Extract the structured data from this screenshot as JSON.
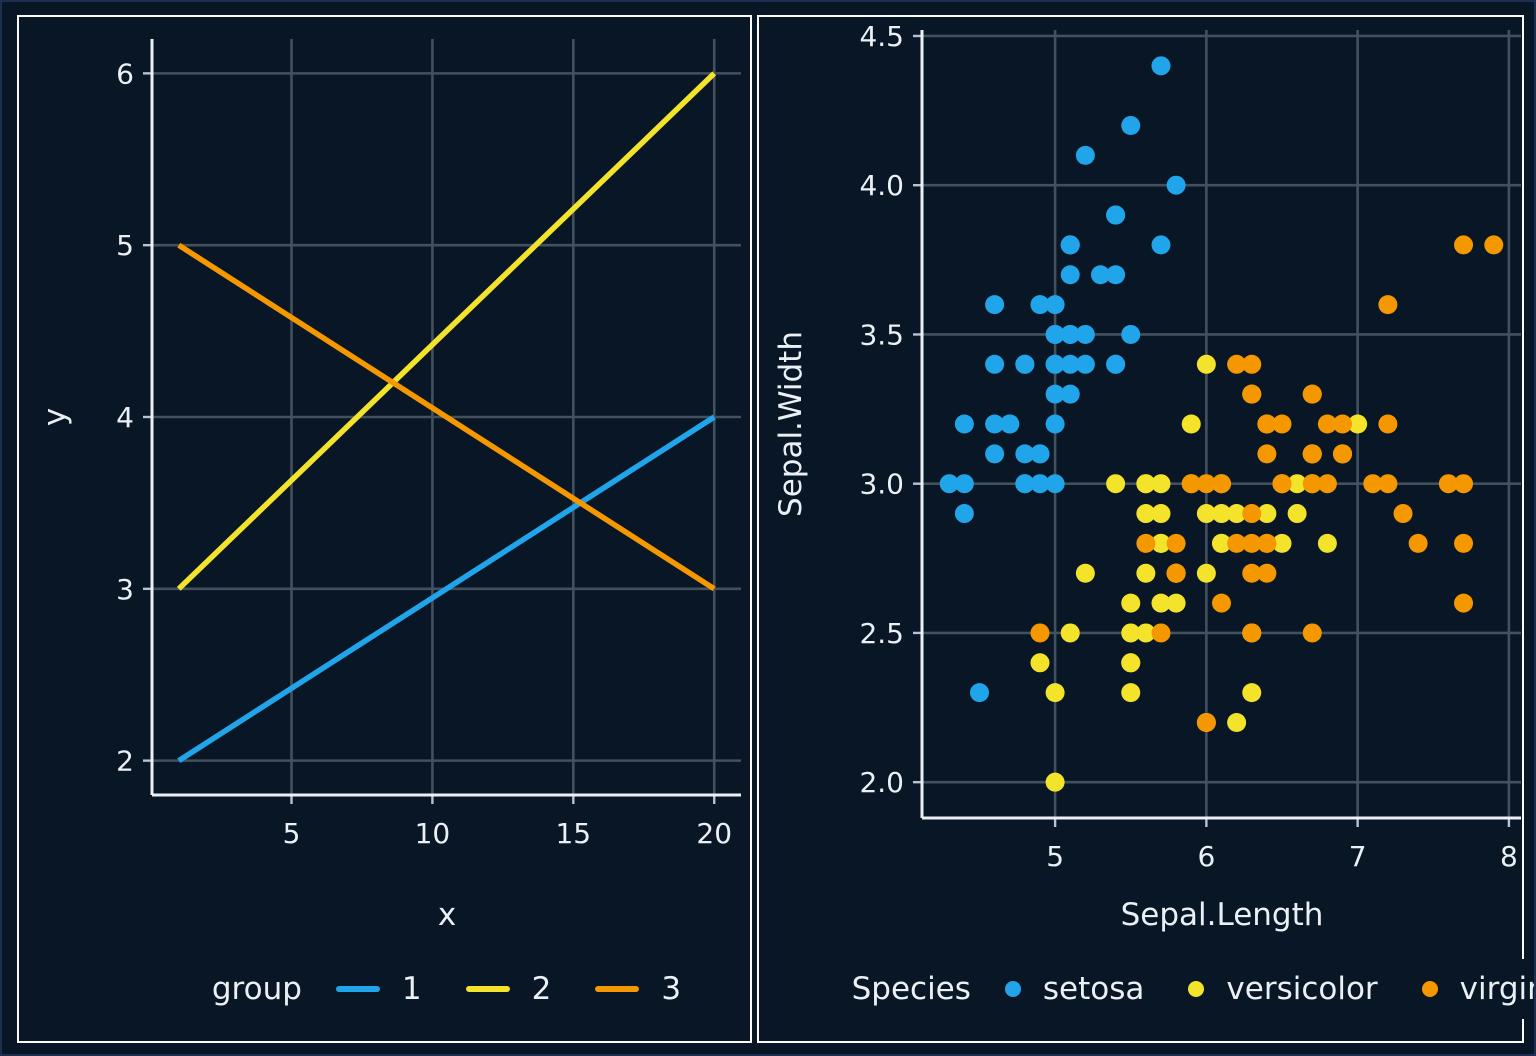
{
  "figure": {
    "background_color": "#081626",
    "panel_border_color": "#FBFBFB",
    "grid_color": "#43505E",
    "axis_line_color": "#EDF1F6",
    "tick_mark_color": "#B9C3CD",
    "text_color": "#EBF0F5",
    "palette": {
      "blue": "#20A5EA",
      "yellow": "#F3E32B",
      "orange": "#F59800"
    }
  },
  "chart_data": [
    {
      "type": "line",
      "title": "",
      "xlabel": "x",
      "ylabel": "y",
      "legend_title": "group",
      "legend_position": "bottom",
      "grid": "major",
      "xlim": [
        0.05,
        20.95
      ],
      "ylim": [
        1.8,
        6.2
      ],
      "xticks": {
        "values": [
          5,
          10,
          15,
          20
        ],
        "labels": [
          "5",
          "10",
          "15",
          "20"
        ]
      },
      "yticks": {
        "values": [
          2,
          3,
          4,
          5,
          6
        ],
        "labels": [
          "2",
          "3",
          "4",
          "5",
          "6"
        ]
      },
      "series": [
        {
          "name": "1",
          "color": "#20A5EA",
          "x": [
            1,
            20
          ],
          "y": [
            2,
            4
          ]
        },
        {
          "name": "2",
          "color": "#F3E32B",
          "x": [
            1,
            20
          ],
          "y": [
            3,
            6
          ]
        },
        {
          "name": "3",
          "color": "#F59800",
          "x": [
            1,
            20
          ],
          "y": [
            5,
            3
          ]
        }
      ]
    },
    {
      "type": "scatter",
      "title": "",
      "xlabel": "Sepal.Length",
      "ylabel": "Sepal.Width",
      "legend_title": "Species",
      "legend_position": "bottom",
      "grid": "major",
      "xlim": [
        4.12,
        8.08
      ],
      "ylim": [
        1.88,
        4.52
      ],
      "xticks": {
        "values": [
          5,
          6,
          7,
          8
        ],
        "labels": [
          "5",
          "6",
          "7",
          "8"
        ]
      },
      "yticks": {
        "values": [
          2.0,
          2.5,
          3.0,
          3.5,
          4.0,
          4.5
        ],
        "labels": [
          "2.0",
          "2.5",
          "3.0",
          "3.5",
          "4.0",
          "4.5"
        ]
      },
      "series": [
        {
          "name": "setosa",
          "color": "#20A5EA",
          "points": [
            [
              5.1,
              3.5
            ],
            [
              4.9,
              3.0
            ],
            [
              4.7,
              3.2
            ],
            [
              4.6,
              3.1
            ],
            [
              5.0,
              3.6
            ],
            [
              5.4,
              3.9
            ],
            [
              4.6,
              3.4
            ],
            [
              5.0,
              3.4
            ],
            [
              4.4,
              2.9
            ],
            [
              4.9,
              3.1
            ],
            [
              5.4,
              3.7
            ],
            [
              4.8,
              3.4
            ],
            [
              4.8,
              3.0
            ],
            [
              4.3,
              3.0
            ],
            [
              5.8,
              4.0
            ],
            [
              5.7,
              4.4
            ],
            [
              5.4,
              3.9
            ],
            [
              5.1,
              3.5
            ],
            [
              5.7,
              3.8
            ],
            [
              5.1,
              3.8
            ],
            [
              5.4,
              3.4
            ],
            [
              5.1,
              3.7
            ],
            [
              4.6,
              3.6
            ],
            [
              5.1,
              3.3
            ],
            [
              4.8,
              3.4
            ],
            [
              5.0,
              3.0
            ],
            [
              5.0,
              3.4
            ],
            [
              5.2,
              3.5
            ],
            [
              5.2,
              3.4
            ],
            [
              4.7,
              3.2
            ],
            [
              4.8,
              3.1
            ],
            [
              5.4,
              3.4
            ],
            [
              5.2,
              4.1
            ],
            [
              5.5,
              4.2
            ],
            [
              4.9,
              3.1
            ],
            [
              5.0,
              3.2
            ],
            [
              5.5,
              3.5
            ],
            [
              4.9,
              3.6
            ],
            [
              4.4,
              3.0
            ],
            [
              5.1,
              3.4
            ],
            [
              5.0,
              3.5
            ],
            [
              4.5,
              2.3
            ],
            [
              4.4,
              3.2
            ],
            [
              5.0,
              3.5
            ],
            [
              5.1,
              3.8
            ],
            [
              4.8,
              3.0
            ],
            [
              5.1,
              3.8
            ],
            [
              4.6,
              3.2
            ],
            [
              5.3,
              3.7
            ],
            [
              5.0,
              3.3
            ]
          ]
        },
        {
          "name": "versicolor",
          "color": "#F3E32B",
          "points": [
            [
              7.0,
              3.2
            ],
            [
              6.4,
              3.2
            ],
            [
              6.9,
              3.1
            ],
            [
              5.5,
              2.3
            ],
            [
              6.5,
              2.8
            ],
            [
              5.7,
              2.8
            ],
            [
              6.3,
              3.3
            ],
            [
              4.9,
              2.4
            ],
            [
              6.6,
              2.9
            ],
            [
              5.2,
              2.7
            ],
            [
              5.0,
              2.0
            ],
            [
              5.9,
              3.0
            ],
            [
              6.0,
              2.2
            ],
            [
              6.1,
              2.9
            ],
            [
              5.6,
              2.9
            ],
            [
              6.7,
              3.1
            ],
            [
              5.6,
              3.0
            ],
            [
              5.8,
              2.7
            ],
            [
              6.2,
              2.2
            ],
            [
              5.6,
              2.5
            ],
            [
              5.9,
              3.2
            ],
            [
              6.1,
              2.8
            ],
            [
              6.3,
              2.5
            ],
            [
              6.1,
              2.8
            ],
            [
              6.4,
              2.9
            ],
            [
              6.6,
              3.0
            ],
            [
              6.8,
              2.8
            ],
            [
              6.7,
              3.0
            ],
            [
              6.0,
              2.9
            ],
            [
              5.7,
              2.6
            ],
            [
              5.5,
              2.4
            ],
            [
              5.5,
              2.4
            ],
            [
              5.8,
              2.7
            ],
            [
              6.0,
              2.7
            ],
            [
              5.4,
              3.0
            ],
            [
              6.0,
              3.4
            ],
            [
              6.7,
              3.1
            ],
            [
              6.3,
              2.3
            ],
            [
              5.6,
              3.0
            ],
            [
              5.5,
              2.5
            ],
            [
              5.5,
              2.6
            ],
            [
              6.1,
              3.0
            ],
            [
              5.8,
              2.6
            ],
            [
              5.0,
              2.3
            ],
            [
              5.6,
              2.7
            ],
            [
              5.7,
              3.0
            ],
            [
              5.7,
              2.9
            ],
            [
              6.2,
              2.9
            ],
            [
              5.1,
              2.5
            ],
            [
              5.7,
              2.8
            ]
          ]
        },
        {
          "name": "virginica",
          "color": "#F59800",
          "points": [
            [
              6.3,
              3.3
            ],
            [
              5.8,
              2.7
            ],
            [
              7.1,
              3.0
            ],
            [
              6.3,
              2.9
            ],
            [
              6.5,
              3.0
            ],
            [
              7.6,
              3.0
            ],
            [
              4.9,
              2.5
            ],
            [
              7.3,
              2.9
            ],
            [
              6.7,
              2.5
            ],
            [
              7.2,
              3.6
            ],
            [
              6.5,
              3.2
            ],
            [
              6.4,
              2.7
            ],
            [
              6.8,
              3.0
            ],
            [
              5.7,
              2.5
            ],
            [
              5.8,
              2.8
            ],
            [
              6.4,
              3.2
            ],
            [
              6.5,
              3.0
            ],
            [
              7.7,
              3.8
            ],
            [
              7.7,
              2.6
            ],
            [
              6.0,
              2.2
            ],
            [
              6.9,
              3.2
            ],
            [
              5.6,
              2.8
            ],
            [
              7.7,
              2.8
            ],
            [
              6.3,
              2.7
            ],
            [
              6.7,
              3.3
            ],
            [
              7.2,
              3.2
            ],
            [
              6.2,
              2.8
            ],
            [
              6.1,
              3.0
            ],
            [
              6.4,
              2.8
            ],
            [
              7.2,
              3.0
            ],
            [
              7.4,
              2.8
            ],
            [
              7.9,
              3.8
            ],
            [
              6.4,
              2.8
            ],
            [
              6.3,
              2.8
            ],
            [
              6.1,
              2.6
            ],
            [
              7.7,
              3.0
            ],
            [
              6.3,
              3.4
            ],
            [
              6.4,
              3.1
            ],
            [
              6.0,
              3.0
            ],
            [
              6.9,
              3.1
            ],
            [
              6.7,
              3.1
            ],
            [
              6.9,
              3.1
            ],
            [
              5.8,
              2.7
            ],
            [
              6.8,
              3.2
            ],
            [
              6.7,
              3.3
            ],
            [
              6.7,
              3.0
            ],
            [
              6.3,
              2.5
            ],
            [
              6.5,
              3.0
            ],
            [
              6.2,
              3.4
            ],
            [
              5.9,
              3.0
            ]
          ]
        }
      ]
    }
  ]
}
